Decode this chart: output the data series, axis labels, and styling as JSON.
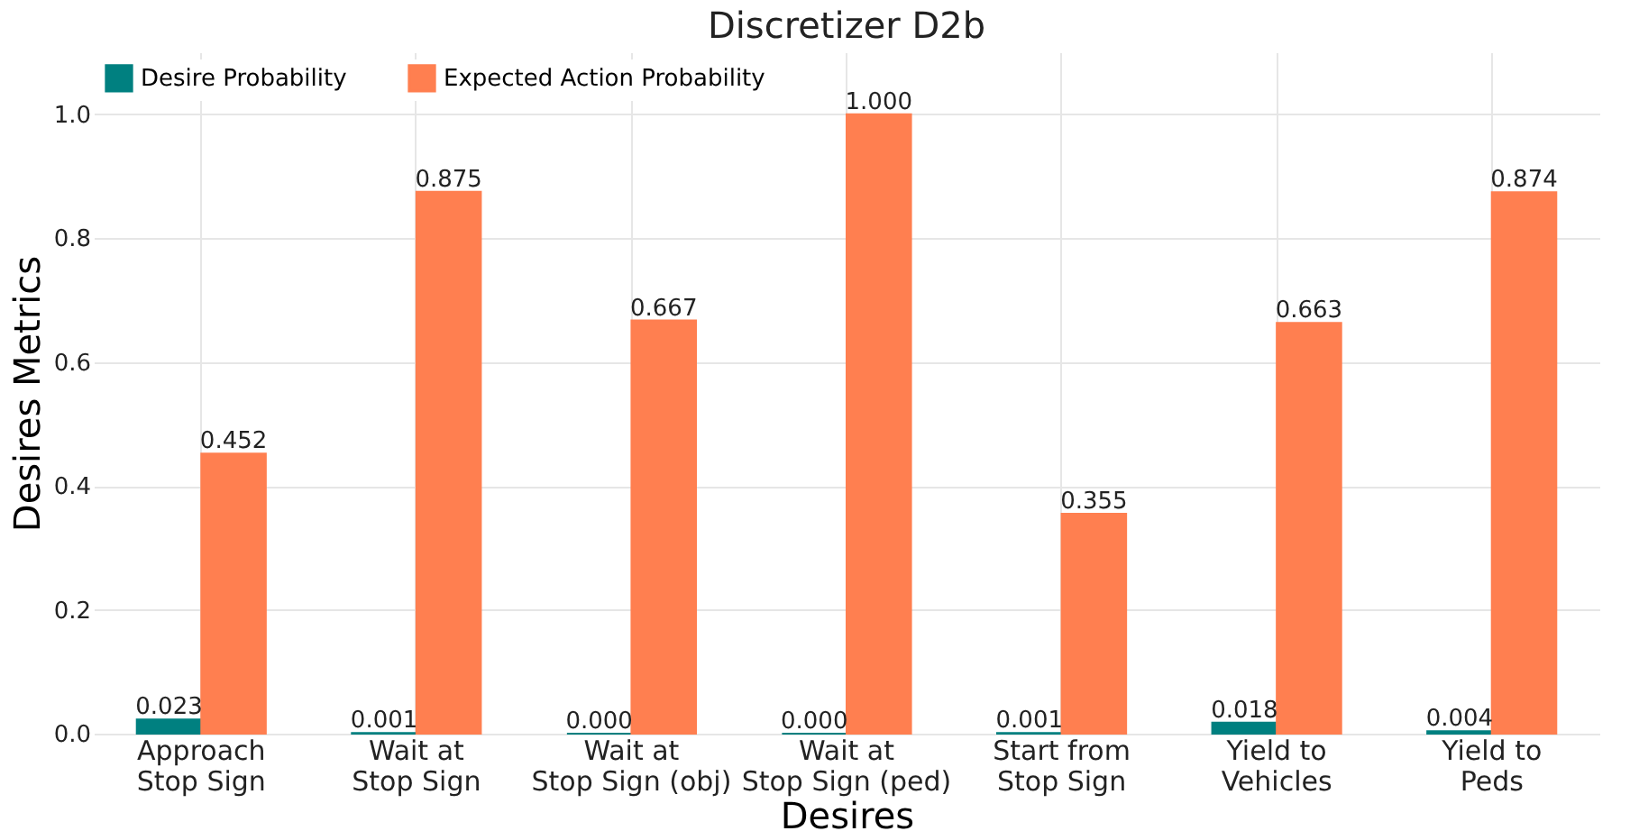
{
  "chart_data": {
    "type": "bar",
    "title": "Discretizer D2b",
    "xlabel": "Desires",
    "ylabel": "Desires Metrics",
    "categories": [
      "Approach\nStop Sign",
      "Wait at\nStop Sign",
      "Wait at\nStop Sign (obj)",
      "Wait at\nStop Sign (ped)",
      "Start from\nStop Sign",
      "Yield to\nVehicles",
      "Yield to\nPeds"
    ],
    "series": [
      {
        "name": "Desire Probability",
        "color": "#008080",
        "values": [
          0.023,
          0.001,
          0.0,
          0.0,
          0.001,
          0.018,
          0.004
        ],
        "value_labels": [
          "0.023",
          "0.001",
          "0.000",
          "0.000",
          "0.001",
          "0.018",
          "0.004"
        ]
      },
      {
        "name": "Expected Action Probability",
        "color": "#ff7f50",
        "values": [
          0.452,
          0.875,
          0.667,
          1.0,
          0.355,
          0.663,
          0.874
        ],
        "value_labels": [
          "0.452",
          "0.875",
          "0.667",
          "1.000",
          "0.355",
          "0.663",
          "0.874"
        ]
      }
    ],
    "ylim": [
      0,
      1.1
    ],
    "yticks": [
      {
        "value": 0,
        "label": "0.0"
      },
      {
        "value": 0.2,
        "label": "0.2"
      },
      {
        "value": 0.4,
        "label": "0.4"
      },
      {
        "value": 0.6,
        "label": "0.6"
      },
      {
        "value": 0.8,
        "label": "0.8"
      },
      {
        "value": 1.0,
        "label": "1.0"
      }
    ],
    "grid": true,
    "legend": "top left"
  }
}
